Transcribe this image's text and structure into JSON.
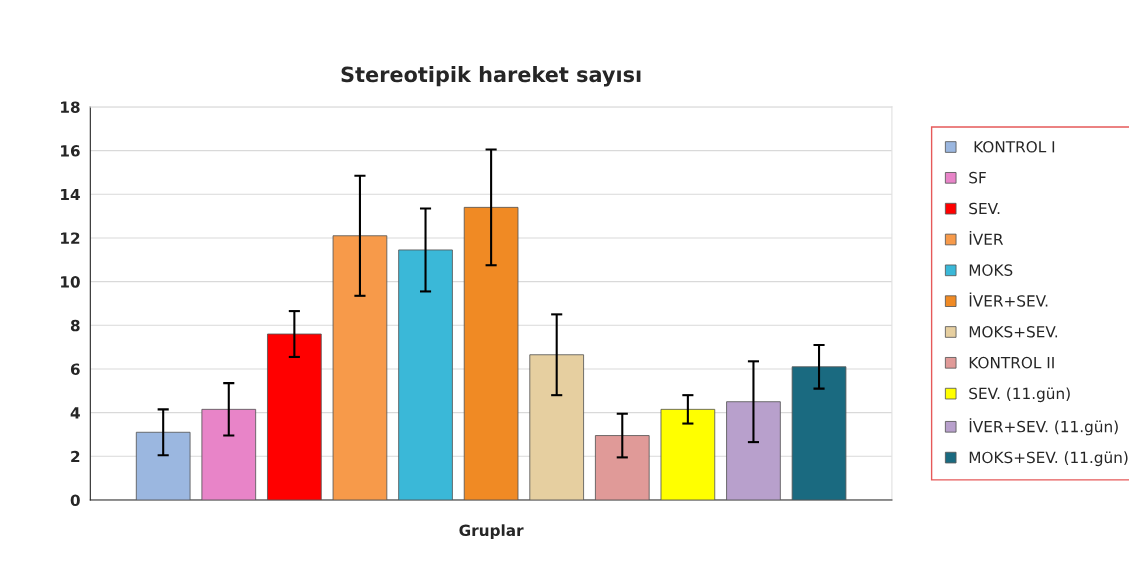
{
  "chart_data": {
    "type": "bar",
    "title": "Stereotipik hareket sayısı",
    "xlabel": "Gruplar",
    "categories": [
      null
    ],
    "series": [
      {
        "name": " KONTROL I",
        "color": "#9bb7e0",
        "values": [
          3.1
        ],
        "errors": [
          1.05
        ]
      },
      {
        "name": "SF",
        "color": "#e884c8",
        "values": [
          4.15
        ],
        "errors": [
          1.2
        ]
      },
      {
        "name": "SEV.",
        "color": "#ff0000",
        "values": [
          7.6
        ],
        "errors": [
          1.05
        ]
      },
      {
        "name": "İVER",
        "color": "#f79a4a",
        "values": [
          12.1
        ],
        "errors": [
          2.75
        ]
      },
      {
        "name": "MOKS",
        "color": "#3ab8d8",
        "values": [
          11.45
        ],
        "errors": [
          1.9
        ]
      },
      {
        "name": "İVER+SEV.",
        "color": "#f08a24",
        "values": [
          13.4
        ],
        "errors": [
          2.65
        ]
      },
      {
        "name": "MOKS+SEV.",
        "color": "#e6cfa0",
        "values": [
          6.65
        ],
        "errors": [
          1.85
        ]
      },
      {
        "name": "KONTROL II",
        "color": "#e09a98",
        "values": [
          2.95
        ],
        "errors": [
          1.0
        ]
      },
      {
        "name": "SEV. (11.gün)",
        "color": "#ffff00",
        "values": [
          4.15
        ],
        "errors": [
          0.65
        ]
      },
      {
        "name": "İVER+SEV. (11.gün)",
        "color": "#b8a0cc",
        "values": [
          4.5
        ],
        "errors": [
          1.85
        ]
      },
      {
        "name": "MOKS+SEV. (11.gün)",
        "color": "#1a6a80",
        "values": [
          6.1
        ],
        "errors": [
          1.0
        ]
      }
    ],
    "ylim": [
      0,
      18
    ],
    "yticks": [
      0,
      2,
      4,
      6,
      8,
      10,
      12,
      14,
      16,
      18
    ],
    "grid": "y",
    "legend": "right"
  }
}
